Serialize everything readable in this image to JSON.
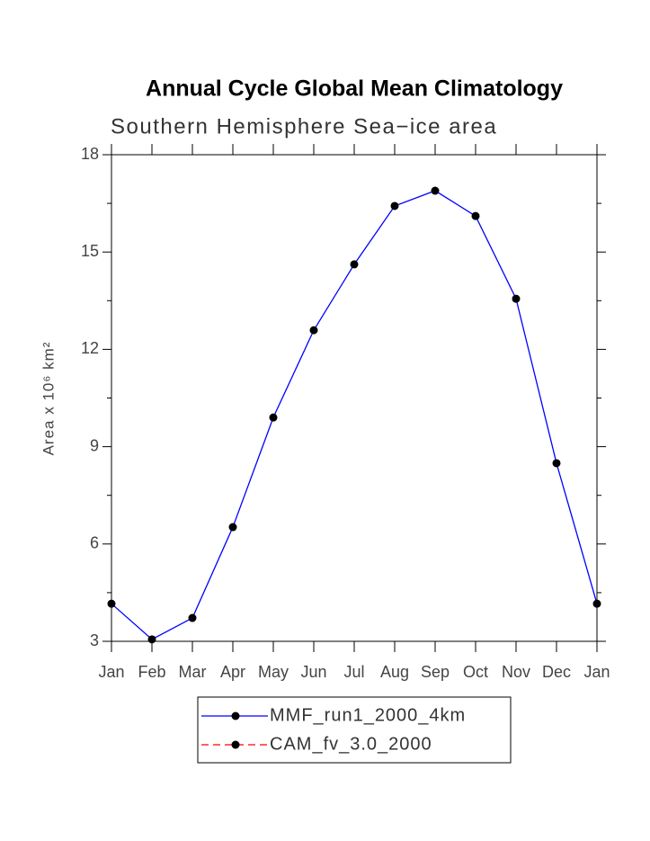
{
  "chart_data": {
    "type": "line",
    "title": "Annual Cycle Global Mean Climatology",
    "subtitle": "Southern Hemisphere Sea−ice area",
    "y_label": "Area x 10⁶ km²",
    "categories": [
      "Jan",
      "Feb",
      "Mar",
      "Apr",
      "May",
      "Jun",
      "Jul",
      "Aug",
      "Sep",
      "Oct",
      "Nov",
      "Dec",
      "Jan"
    ],
    "series": [
      {
        "name": "MMF_run1_2000_4km",
        "color": "#0000ff",
        "dash": false,
        "values": [
          4.16,
          3.06,
          3.72,
          6.52,
          9.9,
          12.59,
          14.62,
          16.42,
          16.89,
          16.11,
          13.56,
          8.49,
          4.16
        ]
      },
      {
        "name": "CAM_fv_3.0_2000",
        "color": "#ff0000",
        "dash": true,
        "values": [
          null,
          null,
          null,
          null,
          null,
          null,
          null,
          null,
          null,
          null,
          null,
          null,
          null
        ]
      }
    ],
    "ylim": [
      3,
      18
    ],
    "yticks": [
      3,
      6,
      9,
      12,
      15,
      18
    ],
    "yminor": [
      4.5,
      7.5,
      10.5,
      13.5,
      16.5
    ]
  }
}
